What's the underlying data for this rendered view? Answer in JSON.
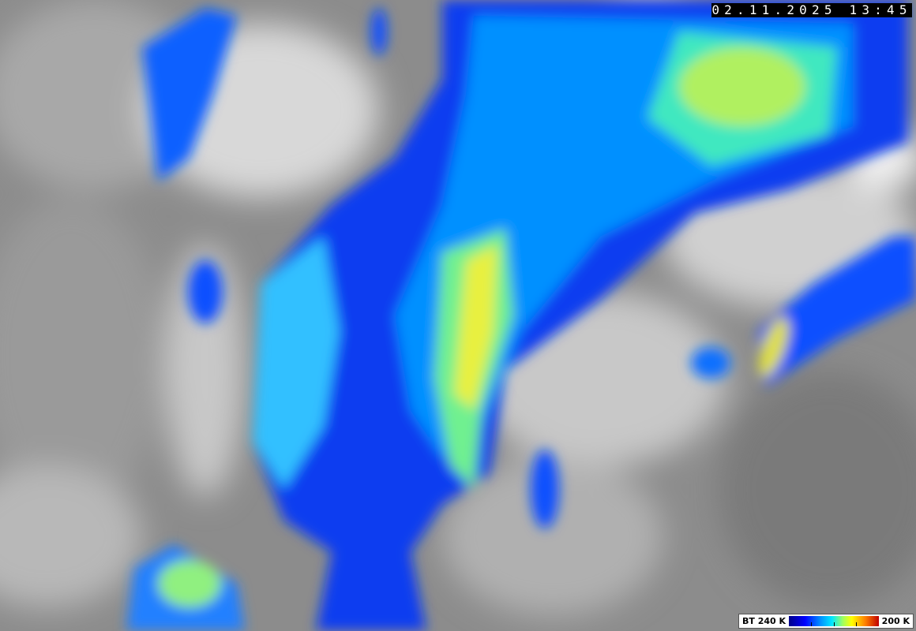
{
  "image": {
    "kind": "infrared satellite cloud imagery",
    "timestamp": "02.11.2025 13:45"
  },
  "legend": {
    "label_low": "BT 240 K",
    "label_high": "200 K",
    "colors": [
      "#00008a",
      "#0000ff",
      "#0090ff",
      "#00e8ff",
      "#a0ff60",
      "#ffff00",
      "#ff8000",
      "#c00000"
    ]
  }
}
